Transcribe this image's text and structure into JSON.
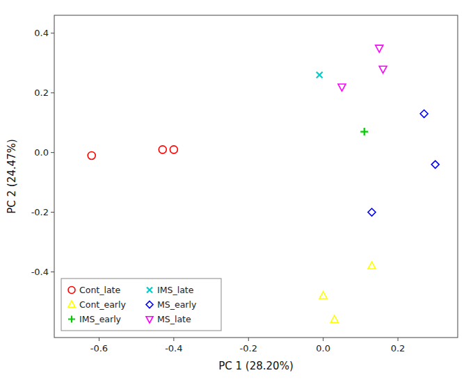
{
  "chart_data": {
    "type": "scatter",
    "xlabel": "PC 1 (28.20%)",
    "ylabel": "PC 2 (24.47%)",
    "xlim": [
      -0.72,
      0.36
    ],
    "ylim": [
      -0.62,
      0.46
    ],
    "xticks": [
      -0.6,
      -0.4,
      -0.2,
      {
        "value": 0.0,
        "label": "0.0"
      },
      0.2
    ],
    "yticks": [
      -0.4,
      -0.2,
      {
        "value": 0.0,
        "label": "0.0"
      },
      0.2,
      0.4
    ],
    "grid": false,
    "legend": "lower left",
    "series": [
      {
        "name": "Cont_late",
        "color": "#FF0000",
        "marker": "circle",
        "x": [
          -0.62,
          -0.43,
          -0.4
        ],
        "values": [
          -0.01,
          0.01,
          0.01
        ]
      },
      {
        "name": "Cont_early",
        "color": "#FFFF00",
        "marker": "triangle-up",
        "x": [
          0.0,
          0.13,
          0.03
        ],
        "values": [
          -0.48,
          -0.38,
          -0.56
        ]
      },
      {
        "name": "IMS_early",
        "color": "#00CC00",
        "marker": "plus",
        "x": [
          0.11
        ],
        "values": [
          0.07
        ]
      },
      {
        "name": "IMS_late",
        "color": "#00CCCC",
        "marker": "x",
        "x": [
          -0.01
        ],
        "values": [
          0.26
        ]
      },
      {
        "name": "MS_early",
        "color": "#0000FF",
        "marker": "diamond",
        "x": [
          0.27,
          0.3,
          0.13
        ],
        "values": [
          0.13,
          -0.04,
          -0.2
        ]
      },
      {
        "name": "MS_late",
        "color": "#FF00FF",
        "marker": "triangle-down",
        "x": [
          0.05,
          0.16,
          0.15
        ],
        "values": [
          0.22,
          0.28,
          0.35
        ]
      }
    ]
  }
}
